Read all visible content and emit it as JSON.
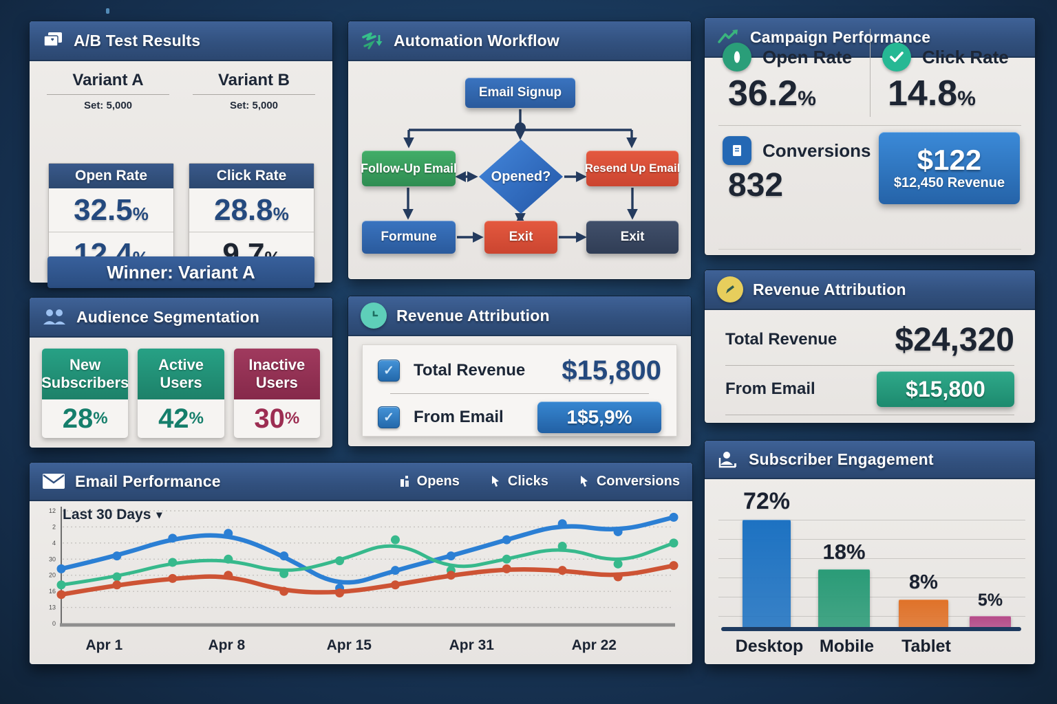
{
  "colors": {
    "header_blue": "#32517f",
    "panel_bg": "#ece9e6",
    "navy_number": "#24497e",
    "teal_card": "#22947a",
    "maroon_card": "#993156",
    "flow_blue": "#2e6cb8",
    "flow_green": "#35a45e",
    "flow_red": "#df4f38",
    "flow_dark_navy": "#3a4a64",
    "button_blue": "#2e7cc4",
    "button_green": "#27a07f",
    "revenue_card_blue": "#2f80cc",
    "icon_teal": "#5ecfb9",
    "icon_yellow": "#e7ce5c",
    "icon_green": "#3ab57d",
    "people_icon_blue": "#9dc2f2"
  },
  "ab_test": {
    "title": "A/B Test Results",
    "variants": [
      {
        "name": "Variant A",
        "set_label": "Set: 5,000",
        "metric_label": "Open Rate",
        "value1": "32.5",
        "value2": "12.4",
        "pct": "%"
      },
      {
        "name": "Variant B",
        "set_label": "Set: 5,000",
        "metric_label": "Click Rate",
        "value1": "28.8",
        "value2": "9.7",
        "pct": "%"
      }
    ],
    "winner": "Winner: Variant A"
  },
  "workflow": {
    "title": "Automation Workflow",
    "nodes": {
      "signup": "Email Signup",
      "followup": "Follow-Up Email",
      "decision": "Opened?",
      "resend": "Resend Up Email",
      "followup_send": "Formune",
      "exit1": "Exit",
      "exit2": "Exit"
    }
  },
  "campaign": {
    "title": "Campaign Performance",
    "metrics": [
      {
        "label": "Open Rate",
        "value": "36.2",
        "suffix": "%"
      },
      {
        "label": "Click Rate",
        "value": "14.8",
        "suffix": "%"
      },
      {
        "label": "Conversions",
        "value": "832",
        "suffix": ""
      }
    ],
    "revenue_card": {
      "amount": "$122",
      "subtitle": "$12,450 Revenue"
    }
  },
  "audience": {
    "title": "Audience Segmentation",
    "segments": [
      {
        "line1": "New",
        "line2": "Subscribers",
        "value": "28",
        "pct": "%"
      },
      {
        "line1": "Active",
        "line2": "Users",
        "value": "42",
        "pct": "%"
      },
      {
        "line1": "Inactive",
        "line2": "Users",
        "value": "30",
        "pct": "%"
      }
    ]
  },
  "revenue_mid": {
    "title": "Revenue Attribution",
    "rows": [
      {
        "label": "Total Revenue",
        "value": "$15,800"
      },
      {
        "label": "From Email",
        "value": "1$5,9%"
      }
    ],
    "checkbox_glyph": "✓"
  },
  "revenue_right": {
    "title": "Revenue Attribution",
    "rows": [
      {
        "label": "Total Revenue",
        "value": "$24,320"
      },
      {
        "label": "From Email",
        "value": "$15,800"
      }
    ]
  },
  "email_perf": {
    "title": "Email Performance",
    "range_selector": "Last 30 Days",
    "chevron": "▾",
    "legend": [
      {
        "label": "Opens"
      },
      {
        "label": "Clicks"
      },
      {
        "label": "Conversions"
      }
    ]
  },
  "subscriber": {
    "title": "Subscriber Engagement"
  },
  "chart_data": [
    {
      "type": "line",
      "title": "Email Performance",
      "x_tick_labels": [
        "Apr 1",
        "Apr 8",
        "Apr 15",
        "Apr 31",
        "Apr 22"
      ],
      "y_tick_labels": [
        "12",
        "2",
        "4",
        "30",
        "20",
        "16",
        "13",
        "0"
      ],
      "ylim": [
        0,
        35
      ],
      "grid": true,
      "legend_position": "header-right",
      "series": [
        {
          "name": "Opens",
          "color": "#2b7fd4",
          "values": [
            17,
            21,
            26.5,
            28,
            21,
            11,
            16.5,
            21,
            26,
            31,
            28.5,
            33
          ]
        },
        {
          "name": "Clicks",
          "color": "#37b98c",
          "values": [
            12,
            14.5,
            19,
            20,
            15.5,
            19.5,
            26,
            16.5,
            20,
            24,
            18.5,
            25
          ]
        },
        {
          "name": "Conversions",
          "color": "#cd5334",
          "values": [
            9,
            12,
            14,
            15,
            10,
            9.5,
            12,
            15,
            17,
            16.5,
            14.5,
            18
          ]
        }
      ]
    },
    {
      "type": "bar",
      "title": "Subscriber Engagement",
      "categories": [
        "Desktop",
        "Mobile",
        "Tablet",
        ""
      ],
      "values": [
        72,
        18,
        8,
        5
      ],
      "value_labels": [
        "72%",
        "18%",
        "8%",
        "5%"
      ],
      "bar_colors": [
        "#1d72c2",
        "#2a9b77",
        "#e07229",
        "#b54a88"
      ],
      "bar_visual_heights": [
        156,
        84,
        40,
        16
      ],
      "grid": true
    }
  ]
}
